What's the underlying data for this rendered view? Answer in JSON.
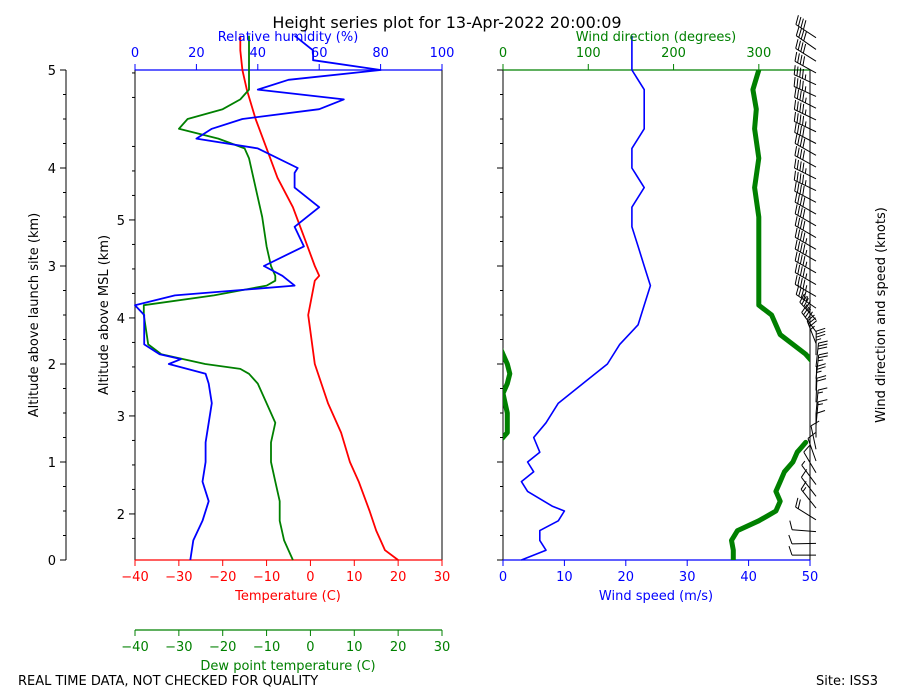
{
  "title": "Height series plot for 13-Apr-2022 20:00:09",
  "footer": {
    "left": "REAL TIME DATA, NOT CHECKED FOR QUALITY",
    "right": "Site: ISS3"
  },
  "colors": {
    "temperature": "#ff0000",
    "dewpoint": "#008000",
    "humidity": "#0000ff",
    "wind_speed": "#0000ff",
    "wind_direction": "#008000",
    "barbs": "#000000"
  },
  "chart_data": [
    {
      "type": "line",
      "panel": "thermo",
      "xlabel_bottom": "Temperature (C)",
      "xlabel_dewpoint": "Dew point temperature (C)",
      "xlabel_top": "Relative humidity (%)",
      "ylabel_left": "Altitude above launch site (km)",
      "ylabel_right": "Altitude above MSL (km)",
      "xlim": [
        -40,
        30
      ],
      "humidity_lim": [
        0,
        100
      ],
      "x_ticks": [
        "−40",
        "−30",
        "−20",
        "−10",
        "0",
        "10",
        "20",
        "30"
      ],
      "humidity_ticks": [
        "0",
        "20",
        "40",
        "60",
        "80",
        "100"
      ],
      "y_agl_ticks": [
        "0",
        "1",
        "2",
        "3",
        "4",
        "5"
      ],
      "y_msl_ticks": [
        "1",
        "2",
        "3",
        "4",
        "5"
      ],
      "ylim_agl_km": [
        0,
        5
      ],
      "msl_offset_km": 1.53,
      "series": [
        {
          "key": "temperature",
          "altitude_km": [
            0.0,
            0.1,
            0.2,
            0.3,
            0.5,
            0.8,
            1.0,
            1.3,
            1.6,
            1.8,
            2.0,
            2.5,
            2.85,
            2.9,
            3.0,
            3.3,
            3.6,
            3.9,
            4.2,
            4.5,
            4.8,
            5.0,
            5.2,
            5.35
          ],
          "values": [
            20,
            17,
            16,
            15,
            13.5,
            11,
            9,
            7,
            4,
            2.5,
            1,
            -0.5,
            1,
            2,
            1,
            -1.5,
            -4,
            -7.5,
            -10,
            -12.5,
            -14.5,
            -15.5,
            -16,
            -16
          ]
        },
        {
          "key": "dewpoint",
          "altitude_km": [
            0.0,
            0.1,
            0.2,
            0.4,
            0.6,
            0.8,
            1.0,
            1.2,
            1.4,
            1.6,
            1.8,
            1.9,
            1.95,
            2.0,
            2.1,
            2.2,
            2.5,
            2.6,
            2.7,
            2.8,
            2.85,
            2.9,
            3.0,
            3.2,
            3.5,
            3.7,
            3.9,
            4.1,
            4.2,
            4.3,
            4.4,
            4.5,
            4.6,
            4.7,
            4.8,
            5.0,
            5.2,
            5.35
          ],
          "values": [
            -4,
            -5,
            -6,
            -7,
            -7,
            -8,
            -9,
            -9,
            -8,
            -10,
            -12,
            -14,
            -16,
            -24,
            -34,
            -37,
            -38,
            -38,
            -22,
            -10,
            -8,
            -8,
            -9,
            -10,
            -11,
            -12,
            -13,
            -14,
            -15,
            -21,
            -30,
            -28,
            -20,
            -16,
            -14,
            -14,
            -14,
            -14
          ]
        },
        {
          "key": "humidity",
          "altitude_km": [
            0.0,
            0.2,
            0.4,
            0.6,
            0.8,
            1.0,
            1.2,
            1.4,
            1.6,
            1.8,
            1.9,
            2.0,
            2.05,
            2.1,
            2.2,
            2.5,
            2.6,
            2.7,
            2.8,
            2.9,
            3.0,
            3.2,
            3.4,
            3.6,
            3.8,
            3.95,
            4.0,
            4.2,
            4.3,
            4.4,
            4.5,
            4.6,
            4.7,
            4.8,
            4.9,
            5.0,
            5.1,
            5.2,
            5.35
          ],
          "values": [
            18,
            19,
            22,
            24,
            22,
            23,
            23,
            24,
            25,
            24,
            23,
            11,
            15,
            8,
            3,
            3,
            0,
            13,
            52,
            48,
            42,
            55,
            52,
            60,
            52,
            52,
            53,
            40,
            20,
            25,
            35,
            60,
            68,
            40,
            50,
            80,
            58,
            58,
            52
          ]
        }
      ]
    },
    {
      "type": "line",
      "panel": "wind",
      "xlabel_bottom": "Wind speed (m/s)",
      "xlabel_top": "Wind direction (degrees)",
      "ylabel_right": "Wind direction and speed (knots)",
      "xlim": [
        0,
        50
      ],
      "direction_lim": [
        0,
        360
      ],
      "x_ticks": [
        "0",
        "10",
        "20",
        "30",
        "40",
        "50"
      ],
      "direction_ticks": [
        "0",
        "100",
        "200",
        "300"
      ],
      "ylim_agl_km": [
        0,
        5
      ],
      "series": [
        {
          "key": "wind_speed",
          "altitude_km": [
            0.0,
            0.1,
            0.2,
            0.3,
            0.4,
            0.5,
            0.55,
            0.7,
            0.8,
            0.9,
            1.0,
            1.1,
            1.25,
            1.4,
            1.6,
            1.8,
            2.0,
            2.2,
            2.4,
            2.6,
            2.8,
            3.0,
            3.2,
            3.4,
            3.6,
            3.8,
            4.0,
            4.2,
            4.4,
            4.6,
            4.8,
            5.0,
            5.2,
            5.35
          ],
          "values": [
            3,
            7,
            6,
            6,
            9,
            10,
            8,
            4,
            3,
            5,
            4,
            6,
            5,
            7,
            9,
            13,
            17,
            19,
            22,
            23,
            24,
            23,
            22,
            21,
            21,
            23,
            21,
            21,
            23,
            23,
            23,
            21,
            21,
            21
          ]
        },
        {
          "key": "wind_direction",
          "segments": [
            {
              "altitude_km": [
                0.0,
                0.1,
                0.2,
                0.3,
                0.4,
                0.45,
                0.5,
                0.6,
                0.7,
                0.8,
                0.9,
                1.0,
                1.1,
                1.15,
                1.2
              ],
              "values": [
                270,
                270,
                268,
                275,
                300,
                310,
                320,
                325,
                320,
                325,
                330,
                340,
                345,
                350,
                355
              ]
            },
            {
              "altitude_km": [
                1.2,
                1.3,
                1.5,
                1.7,
                1.8,
                1.9,
                2.0,
                2.1,
                2.2
              ],
              "values": [
                -5,
                5,
                5,
                0,
                5,
                8,
                5,
                0,
                -5
              ]
            },
            {
              "altitude_km": [
                2.0,
                2.1,
                2.3,
                2.5,
                2.6,
                2.8,
                3.0,
                3.3,
                3.5,
                3.8,
                4.1,
                4.4,
                4.6,
                4.8,
                5.0,
                5.2,
                5.35
              ],
              "values": [
                365,
                355,
                325,
                315,
                300,
                300,
                300,
                300,
                300,
                295,
                300,
                295,
                297,
                293,
                300,
                305,
                303
              ]
            }
          ]
        }
      ],
      "barbs_note": "Wind barbs along right margin"
    }
  ]
}
